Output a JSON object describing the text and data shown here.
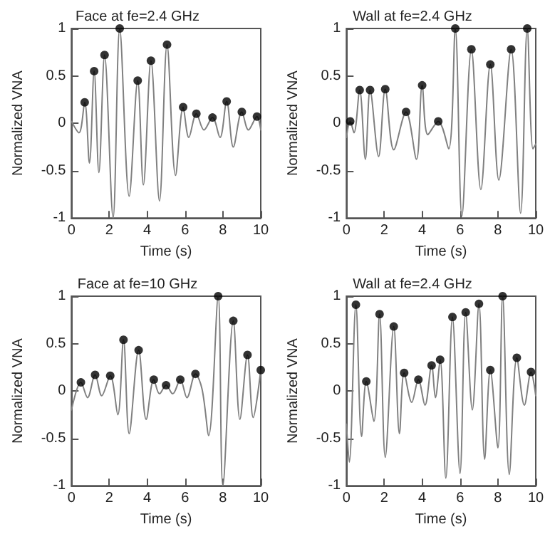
{
  "chart_data": [
    {
      "type": "line",
      "title": "Face at fe=2.4 GHz",
      "xlabel": "Time (s)",
      "ylabel": "Normalized VNA",
      "xlim": [
        0,
        10
      ],
      "xticks": [
        0,
        2,
        4,
        6,
        8,
        10
      ],
      "ylim": [
        -1,
        1
      ],
      "yticks": [
        -1,
        -0.5,
        0,
        0.5,
        1
      ],
      "grid": false,
      "series": [
        {
          "type": "line",
          "marker": "none",
          "color": "#808080",
          "x": [
            0,
            0.4,
            0.7,
            0.95,
            1.2,
            1.45,
            1.75,
            2.2,
            2.55,
            3.05,
            3.5,
            3.8,
            4.2,
            4.65,
            5.05,
            5.5,
            5.9,
            6.2,
            6.6,
            7.0,
            7.45,
            7.85,
            8.2,
            8.55,
            9.0,
            9.35,
            9.8,
            10
          ],
          "values": [
            0.02,
            -0.1,
            0.22,
            -0.42,
            0.55,
            -0.52,
            0.72,
            -1.0,
            1.0,
            -0.77,
            0.45,
            -0.65,
            0.66,
            -0.82,
            0.83,
            -0.55,
            0.17,
            -0.15,
            0.1,
            -0.07,
            0.06,
            -0.15,
            0.23,
            -0.25,
            0.12,
            -0.07,
            0.07,
            -0.07
          ]
        },
        {
          "type": "scatter",
          "marker": "circle",
          "color": "#000000",
          "x": [
            0.7,
            1.2,
            1.75,
            2.55,
            3.5,
            4.2,
            5.05,
            5.9,
            6.6,
            7.45,
            8.2,
            9.0,
            9.8
          ],
          "values": [
            0.22,
            0.55,
            0.72,
            1.0,
            0.45,
            0.66,
            0.83,
            0.17,
            0.1,
            0.06,
            0.23,
            0.12,
            0.07
          ]
        }
      ]
    },
    {
      "type": "line",
      "title": "Wall at fe=2.4 GHz",
      "xlabel": "Time (s)",
      "ylabel": "Normalized VNA",
      "xlim": [
        0,
        10
      ],
      "xticks": [
        0,
        2,
        4,
        6,
        8,
        10
      ],
      "ylim": [
        -1,
        1
      ],
      "yticks": [
        -1,
        -0.5,
        0,
        0.5,
        1
      ],
      "grid": false,
      "series": [
        {
          "type": "line",
          "marker": "none",
          "color": "#808080",
          "x": [
            0,
            0.2,
            0.4,
            0.7,
            1.0,
            1.25,
            1.7,
            2.05,
            2.5,
            3.15,
            3.7,
            4.0,
            4.3,
            4.85,
            5.4,
            5.75,
            6.1,
            6.6,
            7.1,
            7.6,
            8.05,
            8.7,
            9.2,
            9.55,
            9.85,
            10
          ],
          "values": [
            -0.15,
            0.02,
            -0.1,
            0.35,
            -0.38,
            0.35,
            -0.35,
            0.36,
            -0.28,
            0.12,
            -0.38,
            0.4,
            -0.12,
            0.02,
            -0.27,
            1.0,
            -0.98,
            0.78,
            -0.7,
            0.62,
            -0.6,
            0.78,
            -0.95,
            1.0,
            -0.27,
            -0.22
          ]
        },
        {
          "type": "scatter",
          "marker": "circle",
          "color": "#000000",
          "x": [
            0.2,
            0.7,
            1.25,
            2.05,
            3.15,
            4.0,
            4.85,
            5.75,
            6.6,
            7.6,
            8.7,
            9.55
          ],
          "values": [
            0.02,
            0.35,
            0.35,
            0.36,
            0.12,
            0.4,
            0.02,
            1.0,
            0.78,
            0.62,
            0.78,
            1.0
          ]
        }
      ]
    },
    {
      "type": "line",
      "title": "Face at fe=10 GHz",
      "xlabel": "Time (s)",
      "ylabel": "Normalized VNA",
      "xlim": [
        0,
        10
      ],
      "xticks": [
        0,
        2,
        4,
        6,
        8,
        10
      ],
      "ylim": [
        -1,
        1
      ],
      "yticks": [
        -1,
        -0.5,
        0,
        0.5,
        1
      ],
      "grid": false,
      "series": [
        {
          "type": "line",
          "marker": "none",
          "color": "#808080",
          "x": [
            0,
            0.5,
            0.85,
            1.25,
            1.6,
            2.05,
            2.45,
            2.75,
            3.05,
            3.55,
            3.95,
            4.35,
            4.65,
            5.0,
            5.35,
            5.75,
            6.1,
            6.55,
            6.9,
            7.25,
            7.75,
            8.0,
            8.55,
            8.9,
            9.3,
            9.6,
            10
          ],
          "values": [
            -0.2,
            0.09,
            -0.07,
            0.17,
            -0.05,
            0.16,
            -0.25,
            0.54,
            -0.45,
            0.43,
            -0.3,
            0.12,
            -0.03,
            0.06,
            -0.03,
            0.12,
            -0.07,
            0.18,
            0.02,
            -0.47,
            1.0,
            -1.0,
            0.74,
            -0.3,
            0.38,
            -0.28,
            0.22
          ]
        },
        {
          "type": "scatter",
          "marker": "circle",
          "color": "#000000",
          "x": [
            0.5,
            1.25,
            2.05,
            2.75,
            3.55,
            4.35,
            5.0,
            5.75,
            6.55,
            7.75,
            8.55,
            9.3,
            10
          ],
          "values": [
            0.09,
            0.17,
            0.16,
            0.54,
            0.43,
            0.12,
            0.06,
            0.12,
            0.18,
            1.0,
            0.74,
            0.38,
            0.22
          ]
        }
      ]
    },
    {
      "type": "line",
      "title": "Wall at fe=2.4 GHz",
      "xlabel": "Time (s)",
      "ylabel": "Normalized VNA",
      "xlim": [
        0,
        10
      ],
      "xticks": [
        0,
        2,
        4,
        6,
        8,
        10
      ],
      "ylim": [
        -1,
        1
      ],
      "yticks": [
        -1,
        -0.5,
        0,
        0.5,
        1
      ],
      "grid": false,
      "series": [
        {
          "type": "line",
          "marker": "none",
          "color": "#808080",
          "x": [
            0,
            0.15,
            0.5,
            0.8,
            1.05,
            1.45,
            1.75,
            2.05,
            2.5,
            2.8,
            3.05,
            3.45,
            3.8,
            4.15,
            4.5,
            4.7,
            4.95,
            5.25,
            5.6,
            6.0,
            6.3,
            6.65,
            7.0,
            7.3,
            7.6,
            8.0,
            8.25,
            8.6,
            9.0,
            9.4,
            9.75,
            10
          ],
          "values": [
            -0.35,
            -0.75,
            0.91,
            -0.48,
            0.1,
            -0.32,
            0.81,
            -0.7,
            0.68,
            -0.45,
            0.19,
            -0.12,
            0.12,
            -0.15,
            0.27,
            -0.07,
            0.33,
            -0.92,
            0.78,
            -0.87,
            0.83,
            -0.2,
            0.92,
            -0.72,
            0.22,
            -0.6,
            1.0,
            -0.88,
            0.35,
            -0.15,
            0.2,
            -0.05
          ]
        },
        {
          "type": "scatter",
          "marker": "circle",
          "color": "#000000",
          "x": [
            0.5,
            1.05,
            1.75,
            2.5,
            3.05,
            3.8,
            4.5,
            4.95,
            5.6,
            6.3,
            7.0,
            7.6,
            8.25,
            9.0,
            9.75
          ],
          "values": [
            0.91,
            0.1,
            0.81,
            0.68,
            0.19,
            0.12,
            0.27,
            0.33,
            0.78,
            0.83,
            0.92,
            0.22,
            1.0,
            0.35,
            0.2
          ]
        }
      ]
    }
  ]
}
